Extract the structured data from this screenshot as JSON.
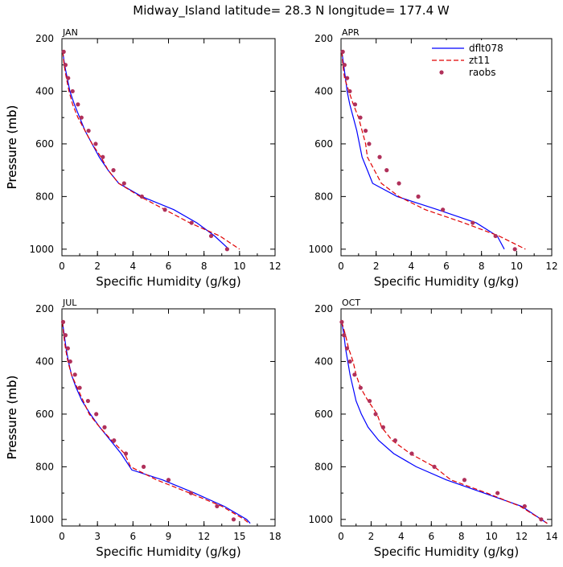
{
  "title": "Midway_Island  latitude= 28.3 N longitude= 177.4 W",
  "colors": {
    "dflt078": "#0000ff",
    "zt11": "#e00000",
    "raobs": "#b0305a",
    "axis": "#000000"
  },
  "legend": [
    {
      "name": "dflt078",
      "style": "solid"
    },
    {
      "name": "zt11",
      "style": "dashed"
    },
    {
      "name": "raobs",
      "style": "dot"
    }
  ],
  "chart_data": [
    {
      "type": "line",
      "panel": "JAN",
      "xlabel": "Specific Humidity (g/kg)",
      "ylabel": "Pressure (mb)",
      "xlim": [
        0,
        12
      ],
      "ylim": [
        200,
        1025
      ],
      "xticks": [
        0,
        2,
        4,
        6,
        8,
        10,
        12
      ],
      "yticks": [
        200,
        400,
        600,
        800,
        1000
      ],
      "series": [
        {
          "name": "dflt078",
          "points": [
            [
              0.05,
              250
            ],
            [
              0.15,
              300
            ],
            [
              0.3,
              350
            ],
            [
              0.45,
              400
            ],
            [
              0.7,
              450
            ],
            [
              1.0,
              500
            ],
            [
              1.3,
              550
            ],
            [
              1.7,
              600
            ],
            [
              2.1,
              650
            ],
            [
              2.6,
              700
            ],
            [
              3.2,
              750
            ],
            [
              4.5,
              800
            ],
            [
              6.3,
              850
            ],
            [
              7.6,
              900
            ],
            [
              8.6,
              950
            ],
            [
              9.4,
              1000
            ]
          ]
        },
        {
          "name": "zt11",
          "points": [
            [
              0.05,
              250
            ],
            [
              0.12,
              300
            ],
            [
              0.25,
              350
            ],
            [
              0.4,
              400
            ],
            [
              0.6,
              450
            ],
            [
              0.9,
              500
            ],
            [
              1.3,
              550
            ],
            [
              1.7,
              600
            ],
            [
              2.2,
              650
            ],
            [
              2.6,
              700
            ],
            [
              3.2,
              750
            ],
            [
              4.4,
              800
            ],
            [
              5.8,
              850
            ],
            [
              7.2,
              900
            ],
            [
              8.9,
              950
            ],
            [
              10.0,
              1000
            ]
          ]
        },
        {
          "name": "raobs",
          "points": [
            [
              0.1,
              250
            ],
            [
              0.2,
              300
            ],
            [
              0.35,
              350
            ],
            [
              0.6,
              400
            ],
            [
              0.9,
              450
            ],
            [
              1.1,
              500
            ],
            [
              1.5,
              550
            ],
            [
              1.9,
              600
            ],
            [
              2.3,
              650
            ],
            [
              2.9,
              700
            ],
            [
              3.5,
              750
            ],
            [
              4.5,
              800
            ],
            [
              5.8,
              850
            ],
            [
              7.3,
              900
            ],
            [
              8.4,
              950
            ],
            [
              9.3,
              1000
            ]
          ]
        }
      ]
    },
    {
      "type": "line",
      "panel": "APR",
      "xlabel": "Specific Humidity (g/kg)",
      "ylabel": "Pressure (mb)",
      "xlim": [
        0,
        12
      ],
      "ylim": [
        200,
        1025
      ],
      "xticks": [
        0,
        2,
        4,
        6,
        8,
        10,
        12
      ],
      "yticks": [
        200,
        400,
        600,
        800,
        1000
      ],
      "series": [
        {
          "name": "dflt078",
          "points": [
            [
              0.05,
              250
            ],
            [
              0.15,
              300
            ],
            [
              0.25,
              350
            ],
            [
              0.35,
              400
            ],
            [
              0.5,
              450
            ],
            [
              0.7,
              500
            ],
            [
              0.9,
              550
            ],
            [
              1.05,
              600
            ],
            [
              1.2,
              650
            ],
            [
              1.5,
              700
            ],
            [
              1.8,
              750
            ],
            [
              3.2,
              800
            ],
            [
              5.5,
              850
            ],
            [
              7.7,
              900
            ],
            [
              8.9,
              950
            ],
            [
              9.3,
              1000
            ]
          ]
        },
        {
          "name": "zt11",
          "points": [
            [
              0.05,
              250
            ],
            [
              0.1,
              300
            ],
            [
              0.2,
              350
            ],
            [
              0.45,
              400
            ],
            [
              0.7,
              450
            ],
            [
              1.0,
              500
            ],
            [
              1.2,
              550
            ],
            [
              1.4,
              600
            ],
            [
              1.5,
              650
            ],
            [
              1.9,
              700
            ],
            [
              2.3,
              750
            ],
            [
              3.3,
              800
            ],
            [
              4.8,
              850
            ],
            [
              7.0,
              900
            ],
            [
              9.0,
              950
            ],
            [
              10.5,
              1000
            ]
          ]
        },
        {
          "name": "raobs",
          "points": [
            [
              0.1,
              250
            ],
            [
              0.2,
              300
            ],
            [
              0.35,
              350
            ],
            [
              0.5,
              400
            ],
            [
              0.8,
              450
            ],
            [
              1.1,
              500
            ],
            [
              1.4,
              550
            ],
            [
              1.6,
              600
            ],
            [
              2.2,
              650
            ],
            [
              2.6,
              700
            ],
            [
              3.3,
              750
            ],
            [
              4.4,
              800
            ],
            [
              5.8,
              850
            ],
            [
              7.5,
              900
            ],
            [
              8.8,
              950
            ],
            [
              9.9,
              1000
            ]
          ]
        }
      ]
    },
    {
      "type": "line",
      "panel": "JUL",
      "xlabel": "Specific Humidity (g/kg)",
      "ylabel": "Pressure (mb)",
      "xlim": [
        0,
        18
      ],
      "ylim": [
        200,
        1025
      ],
      "xticks": [
        0,
        3,
        6,
        9,
        12,
        15,
        18
      ],
      "yticks": [
        200,
        400,
        600,
        800,
        1000
      ],
      "series": [
        {
          "name": "dflt078",
          "points": [
            [
              0.05,
              250
            ],
            [
              0.2,
              300
            ],
            [
              0.35,
              350
            ],
            [
              0.55,
              400
            ],
            [
              0.8,
              450
            ],
            [
              1.2,
              500
            ],
            [
              1.7,
              550
            ],
            [
              2.4,
              600
            ],
            [
              3.2,
              650
            ],
            [
              4.1,
              700
            ],
            [
              5.0,
              750
            ],
            [
              5.9,
              812
            ],
            [
              8.5,
              850
            ],
            [
              11.2,
              900
            ],
            [
              13.7,
              950
            ],
            [
              15.6,
              1000
            ],
            [
              15.9,
              1015
            ]
          ]
        },
        {
          "name": "zt11",
          "points": [
            [
              0.05,
              250
            ],
            [
              0.15,
              300
            ],
            [
              0.3,
              350
            ],
            [
              0.5,
              400
            ],
            [
              0.8,
              450
            ],
            [
              1.3,
              500
            ],
            [
              1.8,
              550
            ],
            [
              2.3,
              600
            ],
            [
              3.2,
              650
            ],
            [
              4.2,
              700
            ],
            [
              5.3,
              750
            ],
            [
              5.8,
              800
            ],
            [
              8.0,
              850
            ],
            [
              10.8,
              900
            ],
            [
              13.5,
              950
            ],
            [
              15.4,
              1000
            ],
            [
              15.8,
              1015
            ]
          ]
        },
        {
          "name": "raobs",
          "points": [
            [
              0.1,
              250
            ],
            [
              0.3,
              300
            ],
            [
              0.5,
              350
            ],
            [
              0.7,
              400
            ],
            [
              1.1,
              450
            ],
            [
              1.5,
              500
            ],
            [
              2.2,
              550
            ],
            [
              2.9,
              600
            ],
            [
              3.6,
              650
            ],
            [
              4.4,
              700
            ],
            [
              5.4,
              750
            ],
            [
              6.9,
              800
            ],
            [
              9.0,
              850
            ],
            [
              10.9,
              900
            ],
            [
              13.1,
              950
            ],
            [
              14.5,
              1000
            ]
          ]
        }
      ]
    },
    {
      "type": "line",
      "panel": "OCT",
      "xlabel": "Specific Humidity (g/kg)",
      "ylabel": "Pressure (mb)",
      "xlim": [
        0,
        14
      ],
      "ylim": [
        200,
        1025
      ],
      "xticks": [
        0,
        2,
        4,
        6,
        8,
        10,
        12,
        14
      ],
      "yticks": [
        200,
        400,
        600,
        800,
        1000
      ],
      "series": [
        {
          "name": "dflt078",
          "points": [
            [
              0.05,
              250
            ],
            [
              0.2,
              300
            ],
            [
              0.3,
              350
            ],
            [
              0.45,
              400
            ],
            [
              0.6,
              450
            ],
            [
              0.8,
              500
            ],
            [
              1.0,
              550
            ],
            [
              1.35,
              600
            ],
            [
              1.8,
              650
            ],
            [
              2.5,
              700
            ],
            [
              3.5,
              750
            ],
            [
              5.0,
              800
            ],
            [
              7.0,
              850
            ],
            [
              9.5,
              900
            ],
            [
              12.0,
              950
            ],
            [
              13.3,
              1000
            ],
            [
              13.7,
              1015
            ]
          ]
        },
        {
          "name": "zt11",
          "points": [
            [
              0.05,
              250
            ],
            [
              0.3,
              300
            ],
            [
              0.5,
              350
            ],
            [
              0.8,
              400
            ],
            [
              1.0,
              450
            ],
            [
              1.3,
              500
            ],
            [
              1.8,
              550
            ],
            [
              2.4,
              600
            ],
            [
              2.7,
              650
            ],
            [
              3.4,
              700
            ],
            [
              4.6,
              750
            ],
            [
              6.2,
              800
            ],
            [
              7.3,
              850
            ],
            [
              9.7,
              900
            ],
            [
              11.9,
              950
            ],
            [
              13.3,
              1000
            ],
            [
              13.7,
              1015
            ]
          ]
        },
        {
          "name": "raobs",
          "points": [
            [
              0.05,
              250
            ],
            [
              0.2,
              300
            ],
            [
              0.4,
              350
            ],
            [
              0.6,
              400
            ],
            [
              0.9,
              450
            ],
            [
              1.3,
              500
            ],
            [
              1.9,
              550
            ],
            [
              2.3,
              600
            ],
            [
              2.8,
              650
            ],
            [
              3.6,
              700
            ],
            [
              4.7,
              750
            ],
            [
              6.2,
              800
            ],
            [
              8.2,
              850
            ],
            [
              10.4,
              900
            ],
            [
              12.2,
              950
            ],
            [
              13.3,
              1000
            ]
          ]
        }
      ]
    }
  ]
}
